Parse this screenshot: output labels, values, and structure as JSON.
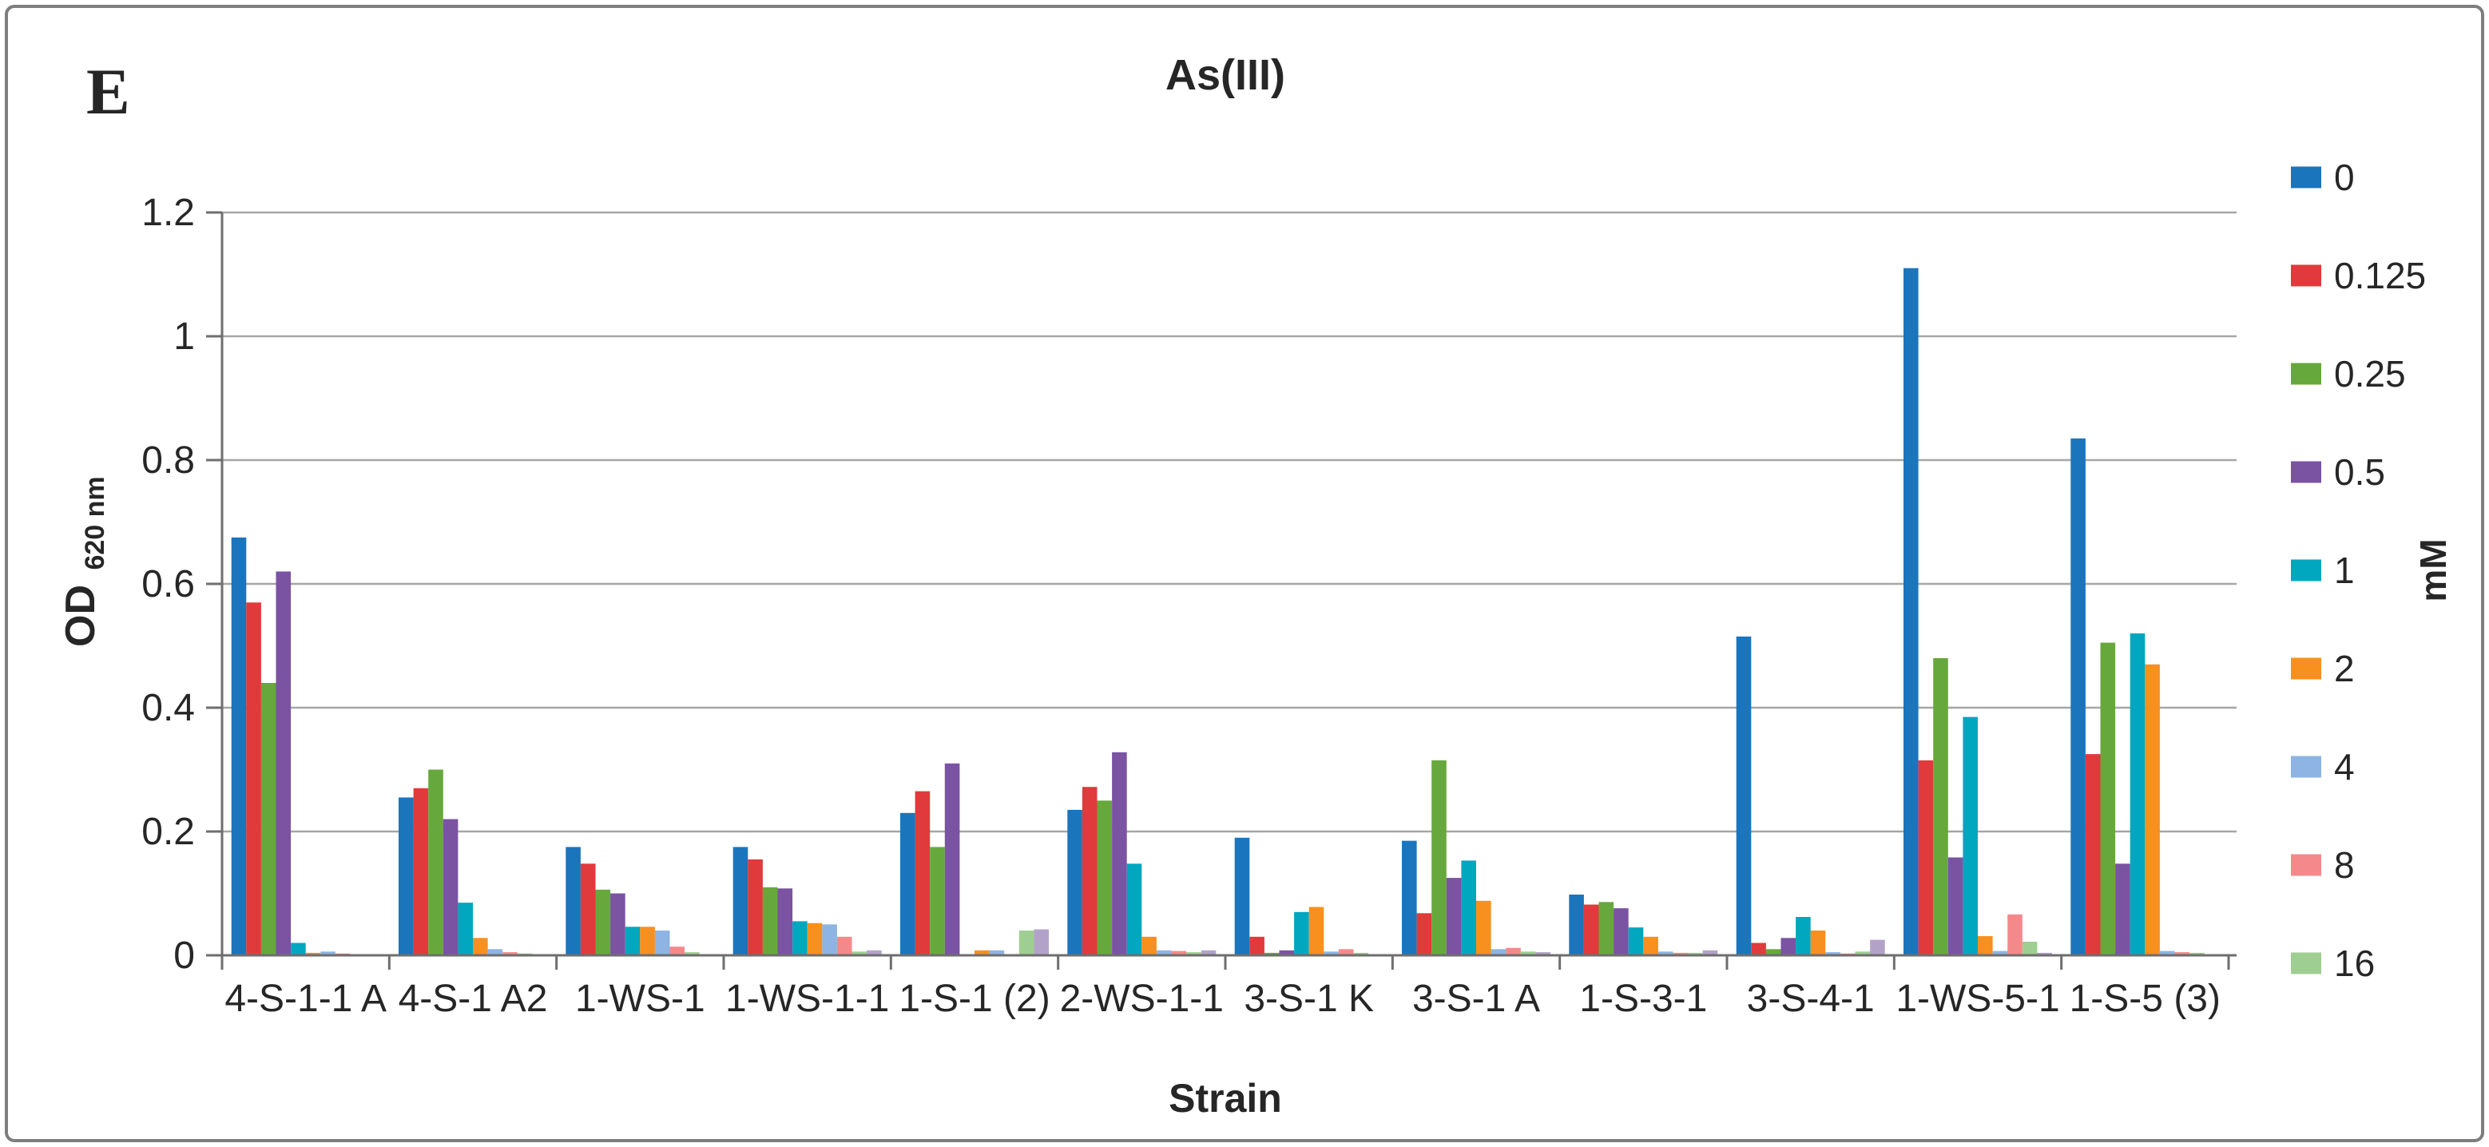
{
  "figure": {
    "panel_label": "E",
    "title": "As(III)",
    "x_axis_title": "Strain",
    "y_axis_title_main": "OD",
    "y_axis_title_sub": "620 nm",
    "legend_title": "mM",
    "panel_label_color": "#ff0000",
    "border_color": "#7e7e7e",
    "background_color": "#ffffff"
  },
  "chart_data": {
    "type": "bar",
    "title": "As(III)",
    "xlabel": "Strain",
    "ylabel": "OD 620 nm",
    "legend_title": "mM",
    "legend_position": "right",
    "grid": true,
    "ylim": [
      0,
      1.2
    ],
    "ytick_step": 0.2,
    "ytick_labels": [
      "0",
      "0.2",
      "0.4",
      "0.6",
      "0.8",
      "1",
      "1.2"
    ],
    "categories": [
      "4-S-1-1 A",
      "4-S-1 A2",
      "1-WS-1",
      "1-WS-1-1",
      "1-S-1 (2)",
      "2-WS-1-1",
      "3-S-1 K",
      "3-S-1 A",
      "1-S-3-1",
      "3-S-4-1",
      "1-WS-5-1",
      "1-S-5 (3)"
    ],
    "series": [
      {
        "name": "0",
        "color": "#1b75bc",
        "in_legend": true,
        "values": [
          0.675,
          0.255,
          0.175,
          0.175,
          0.23,
          0.235,
          0.19,
          0.185,
          0.098,
          0.515,
          1.11,
          0.835
        ]
      },
      {
        "name": "0.125",
        "color": "#e03a3c",
        "in_legend": true,
        "values": [
          0.57,
          0.27,
          0.148,
          0.155,
          0.265,
          0.272,
          0.03,
          0.068,
          0.082,
          0.02,
          0.315,
          0.325
        ]
      },
      {
        "name": "0.25",
        "color": "#67a83c",
        "in_legend": true,
        "values": [
          0.44,
          0.3,
          0.106,
          0.11,
          0.175,
          0.25,
          0.004,
          0.315,
          0.086,
          0.01,
          0.48,
          0.505
        ]
      },
      {
        "name": "0.5",
        "color": "#7a53a3",
        "in_legend": true,
        "values": [
          0.62,
          0.22,
          0.1,
          0.108,
          0.31,
          0.328,
          0.008,
          0.125,
          0.076,
          0.028,
          0.158,
          0.148
        ]
      },
      {
        "name": "1",
        "color": "#00a7be",
        "in_legend": true,
        "values": [
          0.02,
          0.085,
          0.046,
          0.055,
          0.002,
          0.148,
          0.07,
          0.153,
          0.045,
          0.062,
          0.385,
          0.52
        ]
      },
      {
        "name": "2",
        "color": "#f7901e",
        "in_legend": true,
        "values": [
          0.004,
          0.028,
          0.046,
          0.052,
          0.008,
          0.03,
          0.078,
          0.088,
          0.03,
          0.04,
          0.031,
          0.47
        ]
      },
      {
        "name": "4",
        "color": "#8db4e2",
        "in_legend": true,
        "values": [
          0.006,
          0.01,
          0.04,
          0.05,
          0.008,
          0.008,
          0.006,
          0.01,
          0.006,
          0.005,
          0.007,
          0.007
        ]
      },
      {
        "name": "8",
        "color": "#f4898c",
        "in_legend": true,
        "values": [
          0.003,
          0.005,
          0.014,
          0.03,
          0.002,
          0.007,
          0.01,
          0.012,
          0.004,
          0.003,
          0.066,
          0.005
        ]
      },
      {
        "name": "16",
        "color": "#9ece91",
        "in_legend": true,
        "values": [
          0.002,
          0.003,
          0.005,
          0.006,
          0.04,
          0.005,
          0.004,
          0.006,
          0.004,
          0.006,
          0.022,
          0.004
        ]
      },
      {
        "name": "",
        "color": "#b3a2c8",
        "in_legend": false,
        "values": [
          0.0,
          0.0,
          0.0,
          0.008,
          0.042,
          0.008,
          0.0,
          0.005,
          0.008,
          0.025,
          0.004,
          0.002
        ]
      }
    ]
  },
  "layout_colors": {
    "gridline": "#a6a6a6",
    "axis": "#6e6e6e",
    "text": "#262626"
  }
}
